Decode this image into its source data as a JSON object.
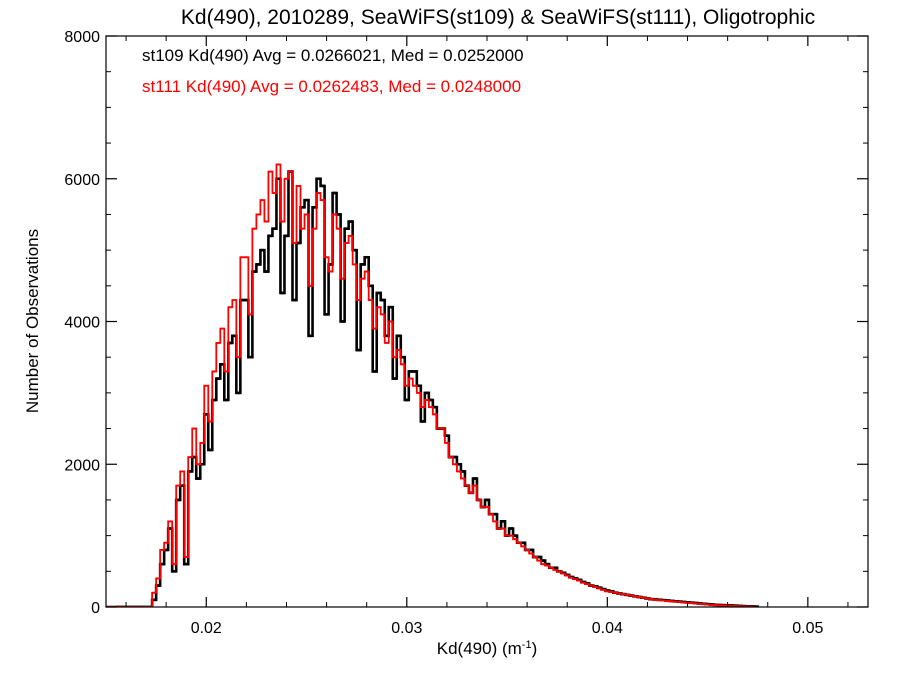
{
  "chart_data": {
    "type": "histogram-step",
    "title": "Kd(490), 2010289, SeaWiFS(st109) & SeaWiFS(st111), Oligotrophic",
    "xlabel_main": "Kd(490) (m",
    "xlabel_sup": "-1",
    "xlabel_close": ")",
    "ylabel": "Number of Observations",
    "xlim": [
      0.015,
      0.053
    ],
    "ylim": [
      0,
      8000
    ],
    "xticks": [
      0.02,
      0.03,
      0.04,
      0.05
    ],
    "xtick_labels": [
      "0.02",
      "0.03",
      "0.04",
      "0.05"
    ],
    "yticks": [
      0,
      2000,
      4000,
      6000,
      8000
    ],
    "ytick_labels": [
      "0",
      "2000",
      "4000",
      "6000",
      "8000"
    ],
    "grid": false,
    "legend_position": "top-left",
    "bin_start": 0.0155,
    "bin_width": 0.0002,
    "series": [
      {
        "name": "st109",
        "label": "st109 Kd(490) Avg = 0.0266021, Med = 0.0252000",
        "color": "#000000",
        "values": [
          0,
          0,
          0,
          0,
          0,
          0,
          0,
          0,
          0,
          100,
          300,
          600,
          800,
          1100,
          500,
          1500,
          1700,
          600,
          1900,
          2100,
          1800,
          2000,
          2700,
          2200,
          2900,
          3200,
          3400,
          2900,
          3700,
          3800,
          3000,
          4300,
          4300,
          3500,
          4700,
          4800,
          5000,
          4700,
          5200,
          5300,
          6000,
          4400,
          5200,
          6100,
          4300,
          5100,
          5600,
          5700,
          3800,
          5600,
          6000,
          5900,
          4100,
          4800,
          5800,
          5500,
          4000,
          5300,
          5400,
          5000,
          3600,
          4800,
          4900,
          4500,
          3300,
          4400,
          4300,
          3800,
          4200,
          3200,
          3800,
          3500,
          2900,
          3300,
          3300,
          3100,
          2600,
          3000,
          2900,
          2800,
          2500,
          2500,
          2400,
          2100,
          2100,
          2000,
          1900,
          1700,
          1600,
          1800,
          1500,
          1400,
          1500,
          1300,
          1300,
          1100,
          1200,
          1000,
          1100,
          1000,
          900,
          900,
          800,
          800,
          700,
          700,
          650,
          600,
          550,
          550,
          500,
          480,
          450,
          420,
          400,
          380,
          350,
          330,
          300,
          290,
          270,
          250,
          230,
          220,
          200,
          190,
          180,
          170,
          160,
          150,
          140,
          130,
          120,
          110,
          105,
          100,
          95,
          90,
          85,
          80,
          75,
          70,
          65,
          60,
          55,
          50,
          45,
          40,
          35,
          30,
          28,
          25,
          22,
          20,
          18,
          15,
          12,
          10,
          8,
          5
        ]
      },
      {
        "name": "st111",
        "label": "st111 Kd(490) Avg = 0.0262483, Med = 0.0248000",
        "color": "#ff0000",
        "values": [
          0,
          0,
          0,
          0,
          0,
          0,
          0,
          0,
          0,
          200,
          400,
          800,
          900,
          1200,
          600,
          1700,
          1900,
          700,
          2100,
          2500,
          2000,
          2300,
          3100,
          2600,
          3300,
          3700,
          3900,
          3300,
          4200,
          4300,
          3500,
          4900,
          4900,
          4100,
          5300,
          5500,
          5700,
          5400,
          6100,
          5800,
          6200,
          5400,
          6000,
          6100,
          5100,
          5900,
          5300,
          5500,
          4500,
          5300,
          5800,
          5700,
          4900,
          4700,
          5500,
          5300,
          4600,
          5100,
          5200,
          4800,
          4300,
          4600,
          4700,
          4300,
          3900,
          4200,
          4100,
          3700,
          4000,
          3500,
          3600,
          3400,
          3100,
          3200,
          3100,
          3000,
          2800,
          2900,
          2800,
          2700,
          2500,
          2500,
          2300,
          2100,
          2000,
          1900,
          1800,
          1700,
          1600,
          1700,
          1500,
          1400,
          1400,
          1300,
          1200,
          1100,
          1100,
          1000,
          1000,
          950,
          900,
          850,
          800,
          750,
          700,
          650,
          600,
          580,
          550,
          520,
          500,
          470,
          440,
          410,
          390,
          370,
          340,
          320,
          300,
          280,
          260,
          240,
          220,
          210,
          200,
          190,
          180,
          170,
          160,
          150,
          140,
          130,
          120,
          110,
          100,
          95,
          90,
          85,
          80,
          75,
          70,
          65,
          60,
          55,
          50,
          45,
          40,
          35,
          30,
          27,
          24,
          21,
          18,
          15,
          12,
          10,
          8,
          6,
          4
        ]
      }
    ]
  }
}
